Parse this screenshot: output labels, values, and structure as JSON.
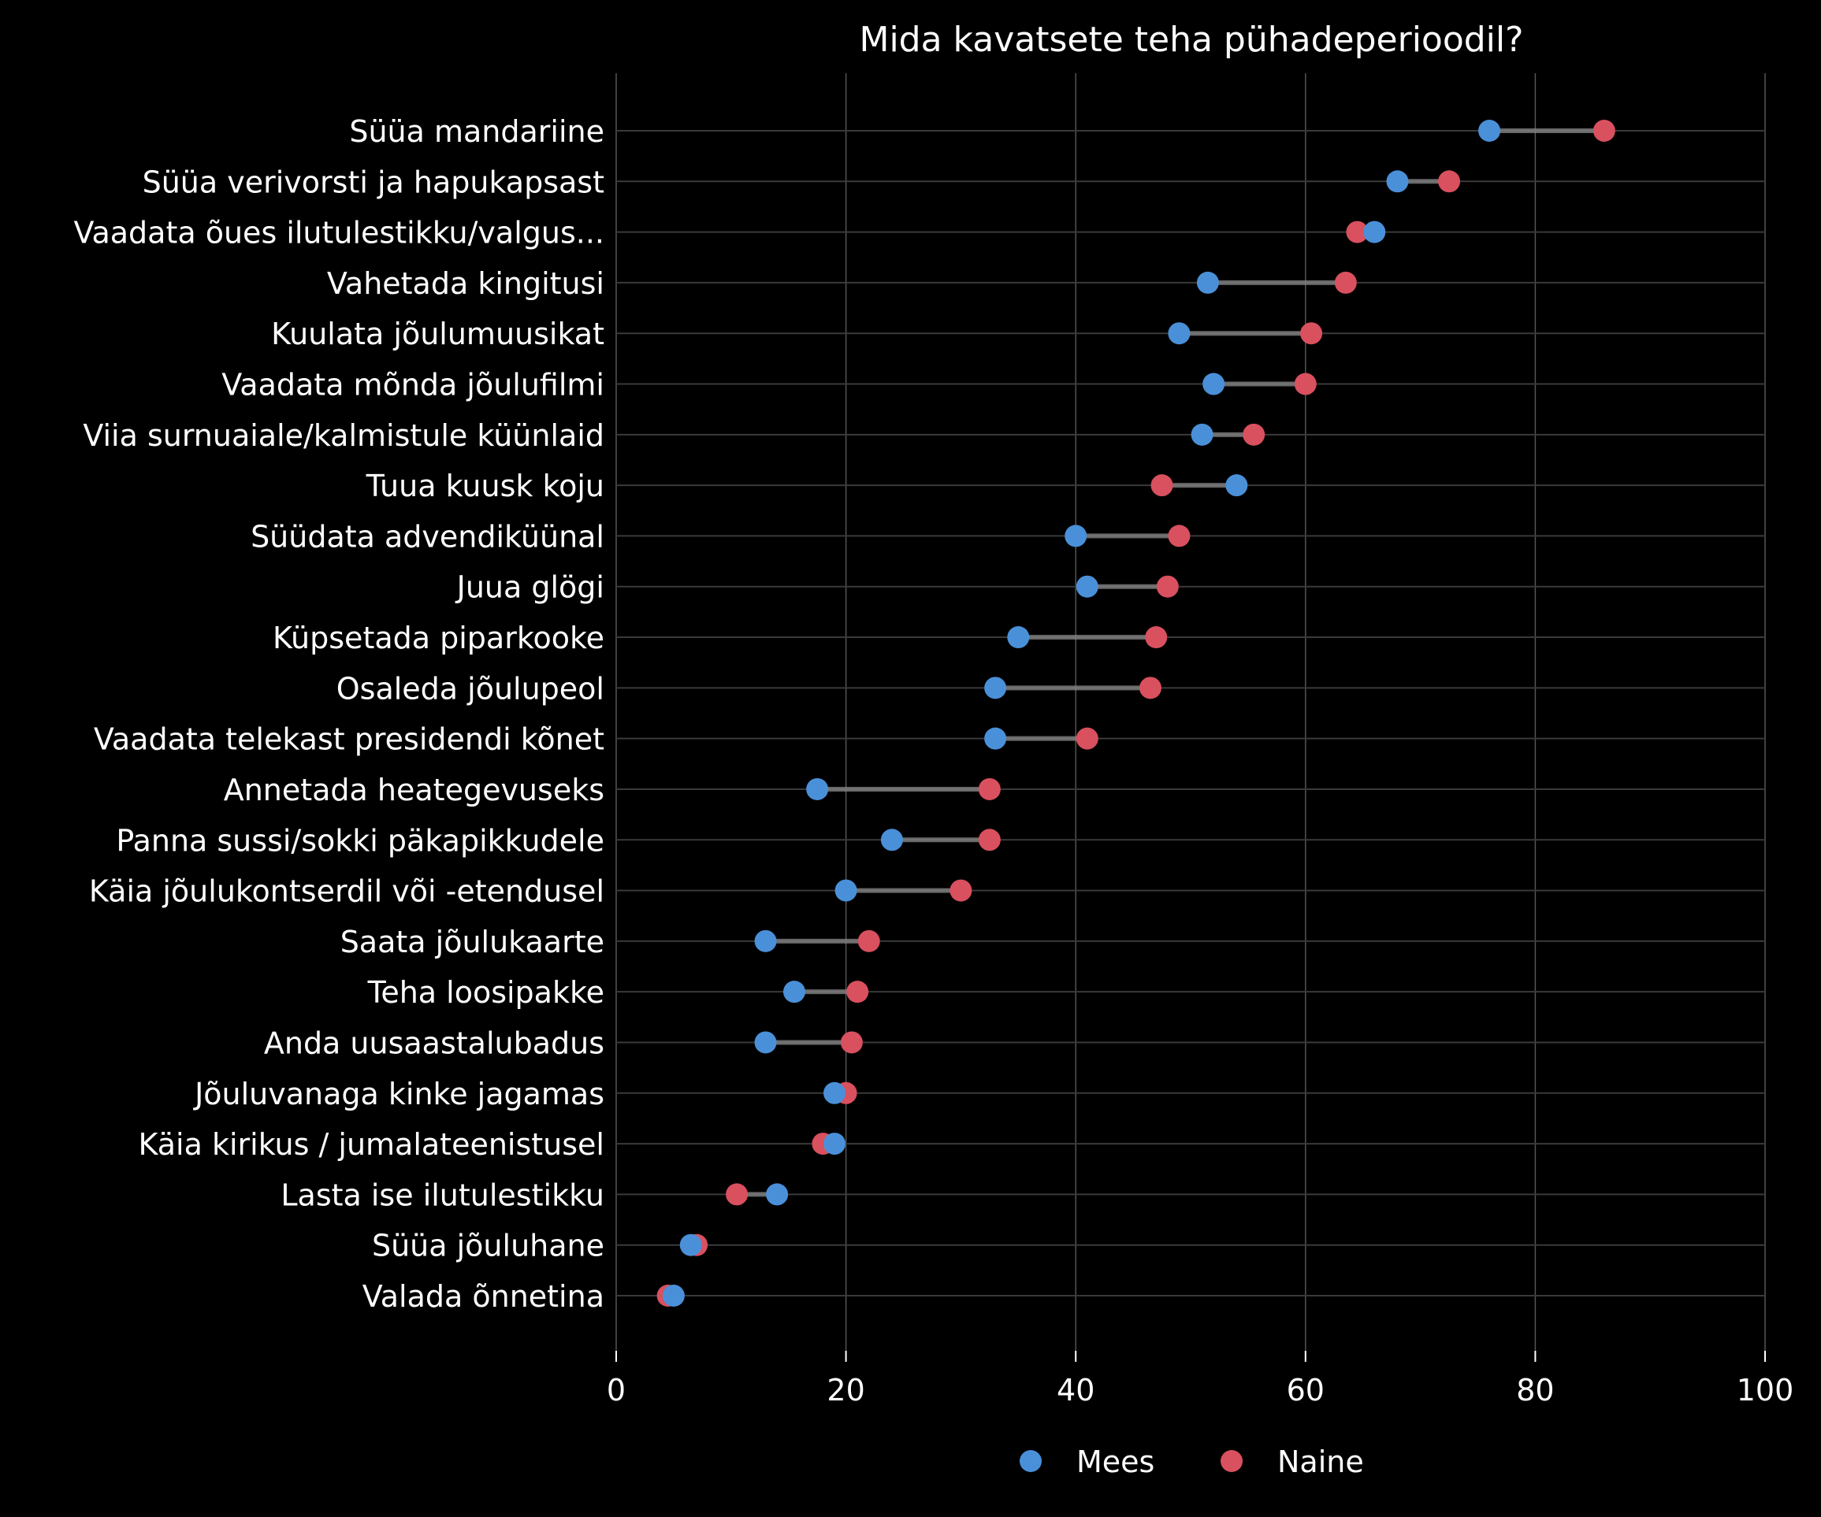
{
  "chart_data": {
    "type": "scatter",
    "title": "Mida kavatsete teha pühadeperioodil?",
    "xlabel": "",
    "ylabel": "",
    "xlim": [
      0,
      100
    ],
    "x_ticks": [
      "0",
      "20",
      "40",
      "60",
      "80",
      "100"
    ],
    "grid": true,
    "legend_position": "bottom",
    "categories": [
      "Süüa mandariine",
      "Süüa verivorsti ja hapukapsast",
      "Vaadata õues ilutulestikku/valgus...",
      "Vahetada kingitusi",
      "Kuulata jõulumuusikat",
      "Vaadata mõnda jõulufilmi",
      "Viia surnuaiale/kalmistule küünlaid",
      "Tuua kuusk koju",
      "Süüdata advendiküünal",
      "Juua glögi",
      "Küpsetada piparkooke",
      "Osaleda jõulupeol",
      "Vaadata telekast presidendi kõnet",
      "Annetada heategevuseks",
      "Panna sussi/sokki päkapikkudele",
      "Käia jõulukontserdil või -etendusel",
      "Saata jõulukaarte",
      "Teha loosipakke",
      "Anda uusaastalubadus",
      "Jõuluvanaga kinke jagamas",
      "Käia kirikus / jumalateenistusel",
      "Lasta ise ilutulestikku",
      "Süüa jõuluhane",
      "Valada õnnetina"
    ],
    "series": [
      {
        "name": "Mees",
        "color": "#4a90d9",
        "values": [
          76,
          68,
          66,
          51.5,
          49,
          52,
          51,
          54,
          40,
          41,
          35,
          33,
          33,
          17.5,
          24,
          20,
          13,
          15.5,
          13,
          19,
          19,
          14,
          6.5,
          5
        ]
      },
      {
        "name": "Naine",
        "color": "#d9505f",
        "values": [
          86,
          72.5,
          64.5,
          63.5,
          60.5,
          60,
          55.5,
          47.5,
          49,
          48,
          47,
          46.5,
          41,
          32.5,
          32.5,
          30,
          22,
          21,
          20.5,
          20,
          18,
          10.5,
          7,
          4.5
        ]
      }
    ]
  }
}
